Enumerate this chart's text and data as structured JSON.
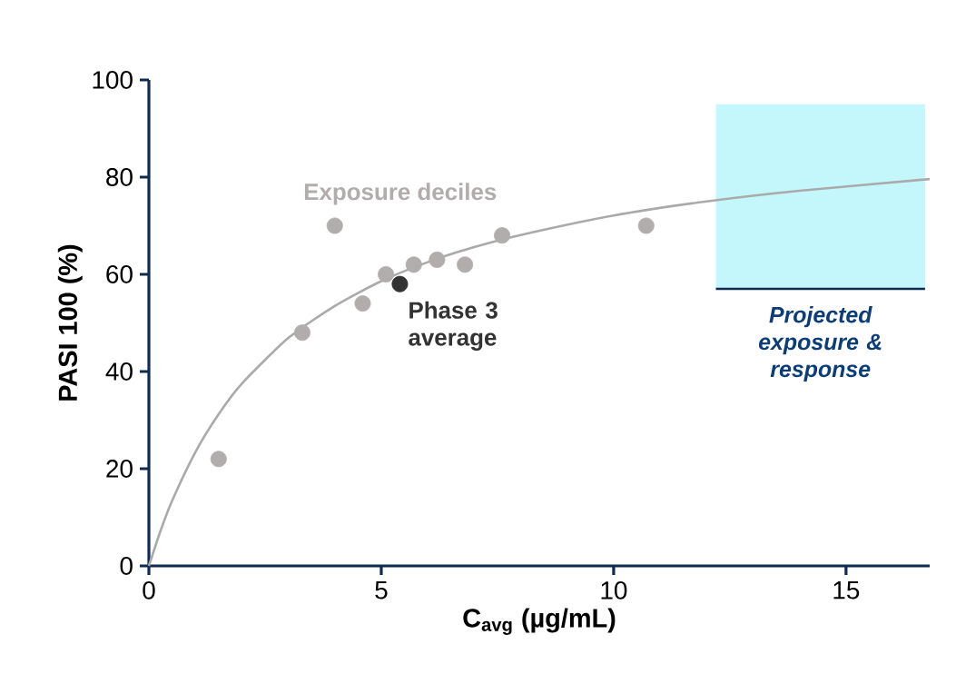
{
  "chart_data": {
    "type": "scatter",
    "xlabel": "C$_{avg}$ (µg/mL)",
    "ylabel": "PASI 100 (%)",
    "xlim": [
      0,
      16.8
    ],
    "ylim": [
      0,
      100
    ],
    "xticks": [
      0,
      5,
      10,
      15
    ],
    "yticks": [
      0,
      20,
      40,
      60,
      80,
      100
    ],
    "series": [
      {
        "type": "line",
        "marker": "none",
        "color": "#aaaaaa",
        "x": [
          0,
          0.25,
          0.5,
          1,
          1.5,
          2,
          3,
          4,
          5,
          6,
          7,
          8,
          10,
          12,
          14,
          16.8
        ],
        "values": [
          0,
          7.2,
          13.4,
          23.4,
          31.2,
          37.5,
          46.9,
          53.5,
          58.6,
          62.5,
          65.6,
          68.1,
          72.1,
          75,
          77.2,
          79.6
        ]
      },
      {
        "name": "Exposure deciles",
        "marker": "circle",
        "color": "#b1adac",
        "x": [
          1.5,
          3.3,
          4.0,
          4.6,
          5.1,
          5.7,
          6.2,
          6.8,
          7.6,
          10.7
        ],
        "values": [
          22,
          48,
          70,
          54,
          60,
          62,
          63,
          62,
          68,
          70
        ]
      },
      {
        "name": "Phase 3 average",
        "marker": "circle",
        "color": "#333333",
        "x": [
          5.4
        ],
        "values": [
          58
        ]
      }
    ],
    "ref_lines": [
      {
        "axis": "y",
        "value": 57,
        "color": "#0d2c4f"
      }
    ],
    "bands": [
      {
        "axis": "x",
        "from": 12.2,
        "to": 16.7,
        "color": "#c4f7fc",
        "label": "Projected exposure & response"
      }
    ]
  }
}
